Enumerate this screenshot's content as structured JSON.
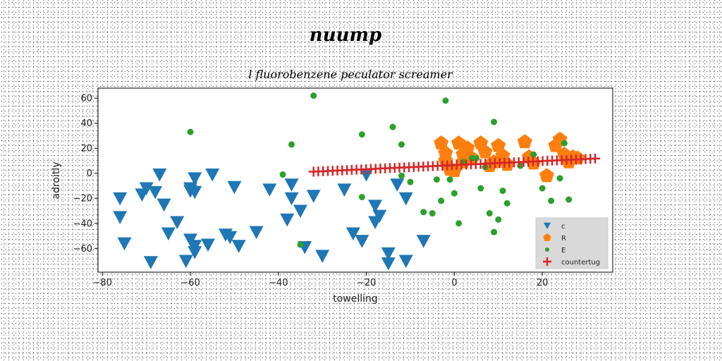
{
  "chart_data": {
    "type": "scatter",
    "suptitle": "nuump",
    "title": "l fluorobenzene peculator screamer",
    "xlabel": "towelling",
    "ylabel": "adroitly",
    "xlim": [
      -81,
      36
    ],
    "ylim": [
      -79,
      68
    ],
    "xticks": [
      -80,
      -60,
      -40,
      -20,
      0,
      20
    ],
    "yticks": [
      -60,
      -40,
      -20,
      0,
      20,
      40,
      60
    ],
    "xtick_labels": [
      "−80",
      "−60",
      "−40",
      "−20",
      "0",
      "20"
    ],
    "ytick_labels": [
      "−60",
      "−40",
      "−20",
      "0",
      "20",
      "40",
      "60"
    ],
    "grid": false,
    "legend_position": "lower-right",
    "series": [
      {
        "name": "c",
        "marker": "triangle-down",
        "color": "#1f77b4",
        "points": [
          [
            -76,
            -20
          ],
          [
            -76,
            -35
          ],
          [
            -75,
            -56
          ],
          [
            -71,
            -17
          ],
          [
            -70,
            -12
          ],
          [
            -69,
            -71
          ],
          [
            -68,
            -15
          ],
          [
            -67,
            -1
          ],
          [
            -66,
            -25
          ],
          [
            -65,
            -48
          ],
          [
            -63,
            -39
          ],
          [
            -61,
            -70
          ],
          [
            -60,
            -12
          ],
          [
            -60,
            -14
          ],
          [
            -60,
            -53
          ],
          [
            -59,
            -4
          ],
          [
            -59,
            -15
          ],
          [
            -59,
            -63
          ],
          [
            -59,
            -58
          ],
          [
            -56,
            -57
          ],
          [
            -55,
            -1
          ],
          [
            -52,
            -49
          ],
          [
            -51,
            -51
          ],
          [
            -49,
            -58
          ],
          [
            -50,
            -11
          ],
          [
            -45,
            -47
          ],
          [
            -42,
            -13
          ],
          [
            -38,
            -37
          ],
          [
            -37,
            -9
          ],
          [
            -37,
            -20
          ],
          [
            -35,
            -30
          ],
          [
            -34,
            -59
          ],
          [
            -32,
            -18
          ],
          [
            -30,
            -66
          ],
          [
            -25,
            -13
          ],
          [
            -23,
            -48
          ],
          [
            -20,
            -1
          ],
          [
            -21,
            -54
          ],
          [
            -18,
            -39
          ],
          [
            -18,
            -26
          ],
          [
            -17,
            -34
          ],
          [
            -15,
            -64
          ],
          [
            -15,
            -72
          ],
          [
            -13,
            -9
          ],
          [
            -11,
            -20
          ],
          [
            -11,
            -70
          ],
          [
            -7,
            -54
          ]
        ]
      },
      {
        "name": "R",
        "marker": "pentagon",
        "color": "#ff7f0e",
        "points": [
          [
            -3,
            24
          ],
          [
            -2,
            16
          ],
          [
            -2,
            10
          ],
          [
            -1,
            3
          ],
          [
            0,
            2
          ],
          [
            1,
            24
          ],
          [
            2,
            15
          ],
          [
            2,
            9
          ],
          [
            3,
            20
          ],
          [
            4,
            12
          ],
          [
            6,
            24
          ],
          [
            7,
            17
          ],
          [
            8,
            6
          ],
          [
            9,
            9
          ],
          [
            10,
            22
          ],
          [
            11,
            14
          ],
          [
            12,
            7
          ],
          [
            16,
            25
          ],
          [
            17,
            13
          ],
          [
            18,
            8
          ],
          [
            21,
            -2
          ],
          [
            23,
            22
          ],
          [
            24,
            27
          ],
          [
            25,
            15
          ],
          [
            26,
            9
          ],
          [
            27,
            13
          ],
          [
            28,
            12
          ]
        ]
      },
      {
        "name": "E",
        "marker": "circle",
        "color": "#2ca02c",
        "points": [
          [
            -32,
            62
          ],
          [
            -60,
            33
          ],
          [
            -37,
            23
          ],
          [
            -39,
            -1
          ],
          [
            -35,
            -57
          ],
          [
            -21,
            31
          ],
          [
            -14,
            37
          ],
          [
            -12,
            23
          ],
          [
            -21,
            -19
          ],
          [
            -12,
            -2
          ],
          [
            -10,
            -7
          ],
          [
            -7,
            -31
          ],
          [
            -5,
            -32
          ],
          [
            -3,
            -22
          ],
          [
            -2,
            58
          ],
          [
            -4,
            -5
          ],
          [
            -1,
            -5
          ],
          [
            0,
            -16
          ],
          [
            1,
            -40
          ],
          [
            2,
            9
          ],
          [
            4,
            12
          ],
          [
            5,
            12
          ],
          [
            6,
            -12
          ],
          [
            7,
            5
          ],
          [
            8,
            -32
          ],
          [
            9,
            -47
          ],
          [
            9,
            41
          ],
          [
            10,
            -37
          ],
          [
            11,
            -14
          ],
          [
            12,
            -24
          ],
          [
            15,
            6
          ],
          [
            18,
            15
          ],
          [
            20,
            -12
          ],
          [
            22,
            -22
          ],
          [
            24,
            -4
          ],
          [
            26,
            -21
          ],
          [
            25,
            24
          ]
        ]
      },
      {
        "name": "countertug",
        "marker": "plus",
        "color": "#d62728",
        "x_range": [
          -32,
          32
        ],
        "count": 60,
        "line": {
          "slope": 0.163,
          "intercept": 6.5
        }
      }
    ]
  }
}
